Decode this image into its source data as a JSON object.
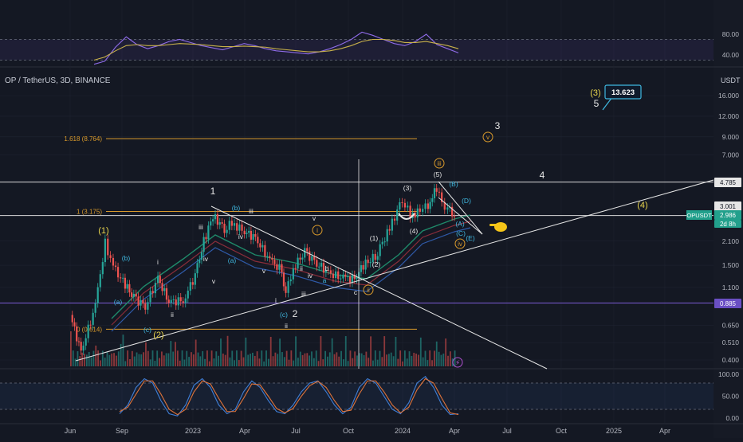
{
  "header": {
    "symbol": "OP / TetherUS, 3D, BINANCE",
    "unit": "USDT"
  },
  "colors": {
    "bg": "#141823",
    "grid": "#1e2330",
    "up": "#26a69a",
    "down": "#ef5350",
    "orange": "#d99a2b",
    "yellow": "#e8d44d",
    "white": "#e6e6e6",
    "cyan": "#3fb8e0",
    "purple": "#7b5bd6"
  },
  "chart_data": [
    {
      "type": "line",
      "role": "rsi-panel",
      "y_ticks": [
        "80.00",
        "40.00"
      ],
      "ylim": [
        20,
        100
      ],
      "series": [
        {
          "values": [
            22,
            28,
            55,
            75,
            60,
            52,
            58,
            66,
            70,
            64,
            58,
            54,
            50,
            56,
            62,
            58,
            52,
            48,
            46,
            44,
            42,
            46,
            52,
            60,
            70,
            84,
            78,
            70,
            62,
            58,
            66,
            80,
            60,
            52,
            44
          ]
        },
        {
          "values": [
            30,
            36,
            48,
            58,
            60,
            58,
            58,
            60,
            62,
            61,
            60,
            58,
            56,
            56,
            57,
            56,
            55,
            52,
            50,
            48,
            46,
            46,
            48,
            52,
            58,
            66,
            70,
            70,
            68,
            64,
            64,
            66,
            62,
            58,
            52
          ]
        }
      ]
    },
    {
      "type": "line",
      "role": "price-panel",
      "scale": "log",
      "x_ticks": [
        "Jun",
        "Sep",
        "2023",
        "Apr",
        "Jul",
        "Oct",
        "2024",
        "Apr",
        "Jul",
        "Oct",
        "2025",
        "Apr"
      ],
      "y_ticks": [
        "16.000",
        "12.000",
        "9.000",
        "7.000",
        "2.100",
        "1.500",
        "1.100",
        "0.650",
        "0.510",
        "0.400"
      ],
      "price_labels": [
        {
          "text": "4.785",
          "kind": "white"
        },
        {
          "text": "3.001",
          "kind": "white"
        },
        {
          "text": "2.986",
          "kind": "teal"
        },
        {
          "text": "OPUSDT",
          "kind": "teal"
        },
        {
          "text": "2d 8h",
          "kind": "teal"
        },
        {
          "text": "0.885",
          "kind": "purple"
        }
      ],
      "price_series": [
        {
          "date": "2022-06-01",
          "value": 0.75
        },
        {
          "date": "2022-06-20",
          "value": 0.45
        },
        {
          "date": "2022-07-15",
          "value": 0.85
        },
        {
          "date": "2022-08-01",
          "value": 2.05
        },
        {
          "date": "2022-08-15",
          "value": 1.45
        },
        {
          "date": "2022-09-01",
          "value": 1.2
        },
        {
          "date": "2022-09-20",
          "value": 0.95
        },
        {
          "date": "2022-10-10",
          "value": 0.85
        },
        {
          "date": "2022-11-01",
          "value": 1.25
        },
        {
          "date": "2022-11-20",
          "value": 0.9
        },
        {
          "date": "2022-12-15",
          "value": 0.92
        },
        {
          "date": "2023-01-05",
          "value": 1.3
        },
        {
          "date": "2023-01-20",
          "value": 2.1
        },
        {
          "date": "2023-02-05",
          "value": 3.0
        },
        {
          "date": "2023-02-25",
          "value": 2.5
        },
        {
          "date": "2023-03-10",
          "value": 2.7
        },
        {
          "date": "2023-04-01",
          "value": 2.4
        },
        {
          "date": "2023-04-20",
          "value": 2.2
        },
        {
          "date": "2023-05-15",
          "value": 1.6
        },
        {
          "date": "2023-06-05",
          "value": 1.4
        },
        {
          "date": "2023-06-12",
          "value": 1.0
        },
        {
          "date": "2023-06-25",
          "value": 1.45
        },
        {
          "date": "2023-07-15",
          "value": 1.8
        },
        {
          "date": "2023-08-05",
          "value": 1.55
        },
        {
          "date": "2023-08-25",
          "value": 1.35
        },
        {
          "date": "2023-09-20",
          "value": 1.25
        },
        {
          "date": "2023-10-10",
          "value": 1.25
        },
        {
          "date": "2023-10-25",
          "value": 1.5
        },
        {
          "date": "2023-11-15",
          "value": 1.7
        },
        {
          "date": "2023-12-10",
          "value": 2.5
        },
        {
          "date": "2024-01-01",
          "value": 3.8
        },
        {
          "date": "2024-01-15",
          "value": 3.0
        },
        {
          "date": "2024-02-01",
          "value": 3.2
        },
        {
          "date": "2024-02-15",
          "value": 3.5
        },
        {
          "date": "2024-03-01",
          "value": 4.4
        },
        {
          "date": "2024-03-10",
          "value": 3.6
        },
        {
          "date": "2024-03-20",
          "value": 3.3
        },
        {
          "date": "2024-04-01",
          "value": 2.986
        }
      ],
      "fib_levels": [
        {
          "label": "1.618 (8.764)",
          "value": 8.764
        },
        {
          "label": "1 (3.175)",
          "value": 3.175
        },
        {
          "label": "0 (0.614)",
          "value": 0.614
        }
      ],
      "horizontal_lines": [
        4.785,
        3.001,
        0.885
      ],
      "target_box": "13.623",
      "wave_labels": {
        "white": [
          "1",
          "2",
          "3",
          "4",
          "5",
          "iii",
          "iv",
          "v",
          "i",
          "ii",
          "iii",
          "iv",
          "v",
          "i",
          "ii",
          "iii",
          "iv",
          "v",
          "ii",
          "b",
          "c",
          "(1)",
          "(2)",
          "(3)",
          "(4)",
          "(5)"
        ],
        "cyan": [
          "(a)",
          "(b)",
          "(c)",
          "(a)",
          "(b)",
          "(c)",
          "a",
          "(A)",
          "(B)",
          "(C)",
          "(D)",
          "(E)"
        ],
        "yellow": [
          "(1)",
          "(2)",
          "(3)",
          "(4)"
        ],
        "orange_circled": [
          "i",
          "ii",
          "iii",
          "iv",
          "v"
        ]
      },
      "volume_badge": "⚡"
    },
    {
      "type": "line",
      "role": "stoch-rsi-panel",
      "y_ticks": [
        "100.00",
        "50.00",
        "0.00"
      ],
      "ylim": [
        0,
        100
      ],
      "series": [
        {
          "values": [
            10,
            30,
            70,
            90,
            80,
            40,
            10,
            5,
            30,
            75,
            90,
            70,
            30,
            10,
            20,
            60,
            85,
            70,
            40,
            15,
            10,
            30,
            60,
            80,
            85,
            60,
            30,
            10,
            25,
            70,
            90,
            80,
            50,
            20,
            10,
            35,
            80,
            95,
            70,
            30,
            8,
            10
          ]
        },
        {
          "values": [
            15,
            25,
            55,
            85,
            85,
            55,
            20,
            8,
            20,
            60,
            85,
            78,
            45,
            15,
            15,
            45,
            78,
            76,
            50,
            22,
            12,
            22,
            50,
            74,
            84,
            70,
            40,
            15,
            18,
            55,
            85,
            85,
            60,
            30,
            12,
            25,
            65,
            90,
            80,
            45,
            12,
            8
          ]
        }
      ]
    }
  ]
}
